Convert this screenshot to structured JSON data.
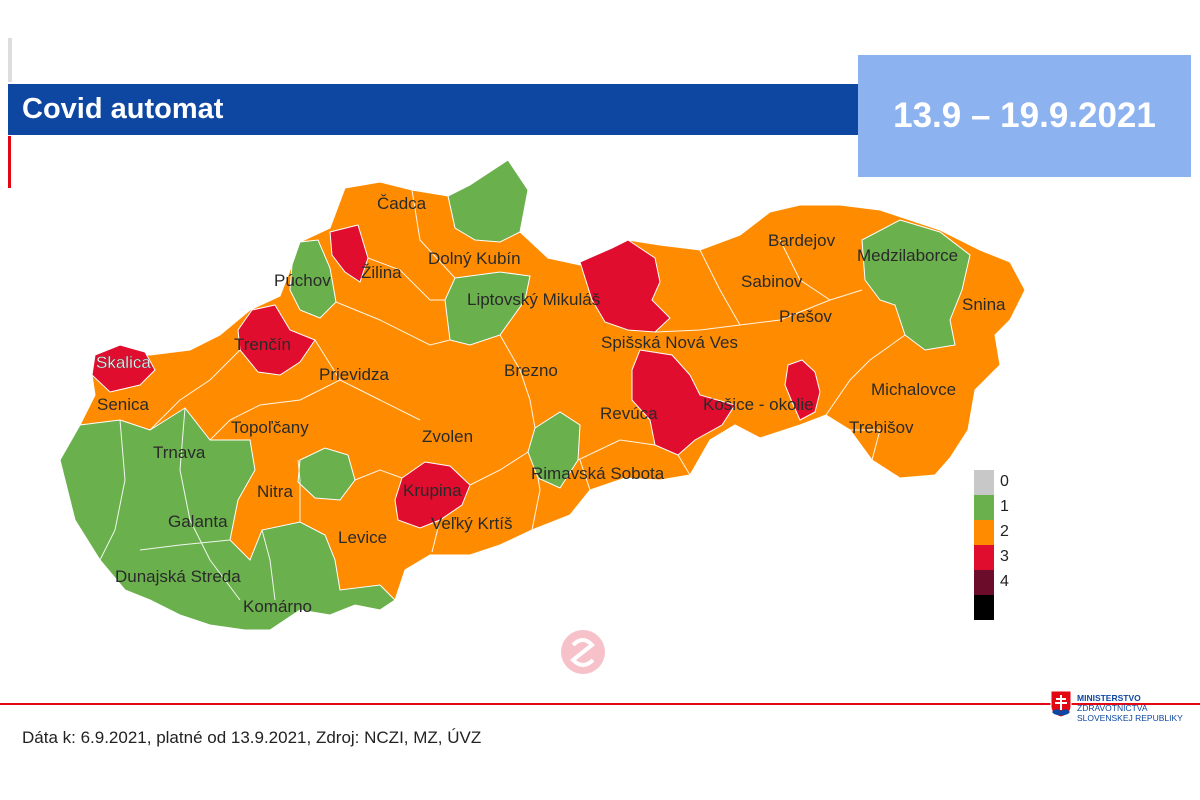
{
  "header": {
    "title": "Covid automat",
    "date_range": "13.9 – 19.9.2021"
  },
  "map_labels": {
    "cadca": "Čadca",
    "dolny_kubin": "Dolný Kubín",
    "zilina": "Žilina",
    "puchov": "Púchov",
    "liptovsky_mikulas": "Liptovský Mikuláš",
    "bardejov": "Bardejov",
    "medzilaborce": "Medzilaborce",
    "sabinov": "Sabinov",
    "snina": "Snina",
    "presov": "Prešov",
    "trencin": "Trenčín",
    "spisska_nova_ves": "Spišská Nová Ves",
    "skalica": "Skalica",
    "prievidza": "Prievidza",
    "brezno": "Brezno",
    "michalovce": "Michalovce",
    "senica": "Senica",
    "revuca": "Revúca",
    "kosice_okolie": "Košice - okolie",
    "topolcany": "Topoľčany",
    "trebisov": "Trebišov",
    "trnava": "Trnava",
    "zvolen": "Zvolen",
    "rimavska_sobota": "Rimavská Sobota",
    "nitra": "Nitra",
    "krupina": "Krupina",
    "galanta": "Galanta",
    "velky_krtis": "Veľký Krtíš",
    "levice": "Levice",
    "dunajska_streda": "Dunajská Streda",
    "komarno": "Komárno"
  },
  "legend": [
    {
      "label": "0",
      "color": "#c8c8c8"
    },
    {
      "label": "1",
      "color": "#6ab04c"
    },
    {
      "label": "2",
      "color": "#ff8c00"
    },
    {
      "label": "3",
      "color": "#e00d2e"
    },
    {
      "label": "4",
      "color": "#6b0d2a"
    },
    {
      "label": "",
      "color": "#000000"
    }
  ],
  "colors": {
    "green": "#6ab04c",
    "orange": "#ff8c00",
    "red": "#e00d2e",
    "title_bar": "#0d47a1",
    "date_box": "#8db2f0"
  },
  "footer": {
    "source": "Dáta k: 6.9.2021, platné od 13.9.2021, Zdroj: NCZI, MZ, ÚVZ",
    "logo_line1": "MINISTERSTVO",
    "logo_line2": "ZDRAVOTNÍCTVA",
    "logo_line3": "SLOVENSKEJ REPUBLIKY"
  }
}
